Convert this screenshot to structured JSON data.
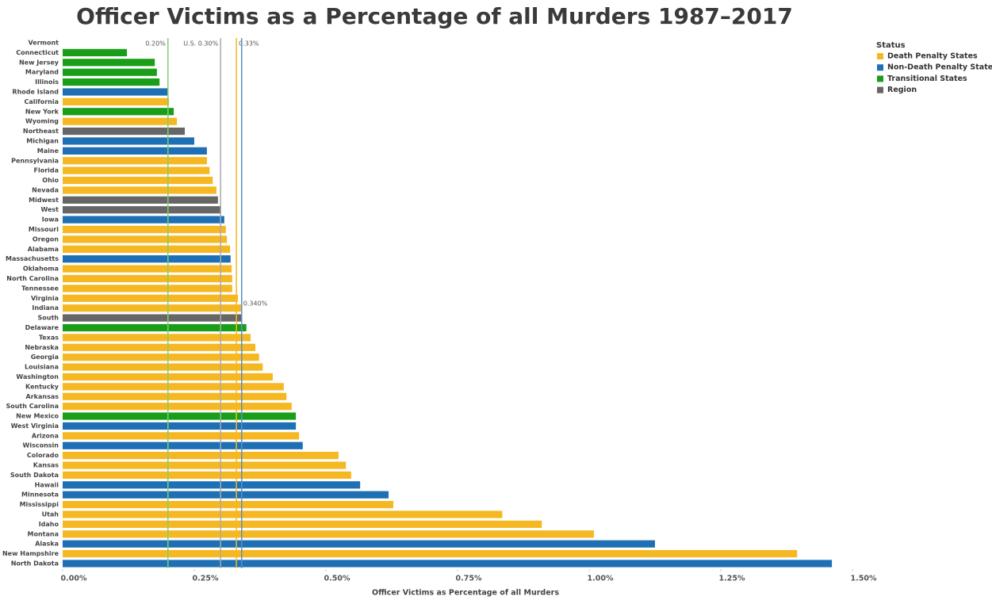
{
  "chart_data": {
    "type": "bar",
    "orientation": "horizontal",
    "title": "Officer Victims as a Percentage of all Murders 1987–2017",
    "x_label": "Officer Victims as Percentage of all Murders",
    "categories": [
      "Vermont",
      "Connecticut",
      "New Jersey",
      "Maryland",
      "Illinois",
      "Rhode Island",
      "California",
      "New York",
      "Wyoming",
      "Northeast",
      "Michigan",
      "Maine",
      "Pennsylvania",
      "Florida",
      "Ohio",
      "Nevada",
      "Midwest",
      "West",
      "Iowa",
      "Missouri",
      "Oregon",
      "Alabama",
      "Massachusetts",
      "Oklahoma",
      "North Carolina",
      "Tennessee",
      "Virginia",
      "Indiana",
      "South",
      "Delaware",
      "Texas",
      "Nebraska",
      "Georgia",
      "Louisiana",
      "Washington",
      "Kentucky",
      "Arkansas",
      "South Carolina",
      "New Mexico",
      "West Virginia",
      "Arizona",
      "Wisconsin",
      "Colorado",
      "Kansas",
      "South Dakota",
      "Hawaii",
      "Minnesota",
      "Mississippi",
      "Utah",
      "Idaho",
      "Montana",
      "Alaska",
      "New Hampshire",
      "North Dakota"
    ],
    "values": [
      0,
      0.122,
      0.175,
      0.179,
      0.184,
      0.199,
      0.202,
      0.211,
      0.217,
      0.232,
      0.25,
      0.274,
      0.274,
      0.279,
      0.285,
      0.292,
      0.295,
      0.301,
      0.307,
      0.31,
      0.312,
      0.318,
      0.319,
      0.321,
      0.322,
      0.322,
      0.333,
      0.339,
      0.34,
      0.349,
      0.357,
      0.366,
      0.373,
      0.38,
      0.399,
      0.42,
      0.425,
      0.435,
      0.443,
      0.443,
      0.449,
      0.456,
      0.524,
      0.538,
      0.548,
      0.565,
      0.619,
      0.628,
      0.835,
      0.91,
      1.009,
      1.125,
      1.395,
      1.461
    ],
    "status": [
      "Non-Death Penalty States",
      "Transitional States",
      "Transitional States",
      "Transitional States",
      "Transitional States",
      "Non-Death Penalty States",
      "Death Penalty States",
      "Transitional States",
      "Death Penalty States",
      "Region",
      "Non-Death Penalty States",
      "Non-Death Penalty States",
      "Death Penalty States",
      "Death Penalty States",
      "Death Penalty States",
      "Death Penalty States",
      "Region",
      "Region",
      "Non-Death Penalty States",
      "Death Penalty States",
      "Death Penalty States",
      "Death Penalty States",
      "Non-Death Penalty States",
      "Death Penalty States",
      "Death Penalty States",
      "Death Penalty States",
      "Death Penalty States",
      "Death Penalty States",
      "Region",
      "Transitional States",
      "Death Penalty States",
      "Death Penalty States",
      "Death Penalty States",
      "Death Penalty States",
      "Death Penalty States",
      "Death Penalty States",
      "Death Penalty States",
      "Death Penalty States",
      "Transitional States",
      "Non-Death Penalty States",
      "Death Penalty States",
      "Non-Death Penalty States",
      "Death Penalty States",
      "Death Penalty States",
      "Death Penalty States",
      "Non-Death Penalty States",
      "Non-Death Penalty States",
      "Death Penalty States",
      "Death Penalty States",
      "Death Penalty States",
      "Death Penalty States",
      "Non-Death Penalty States",
      "Death Penalty States",
      "Non-Death Penalty States"
    ],
    "legend": {
      "title": "Status",
      "items": [
        {
          "name": "Death Penalty States",
          "color": "#f5b822"
        },
        {
          "name": "Non-Death Penalty States",
          "color": "#1f6fb5"
        },
        {
          "name": "Transitional States",
          "color": "#1a9e1a"
        },
        {
          "name": "Region",
          "color": "#666666"
        }
      ]
    },
    "reference_lines": [
      {
        "value": 0.2,
        "label": "0.20%",
        "color": "#7fcf6f"
      },
      {
        "value": 0.3,
        "label": "U.S. 0.30%",
        "color": "#aaaaaa"
      },
      {
        "value": 0.33,
        "label": "0.33%",
        "color": "#f5b822"
      },
      {
        "value": 0.34,
        "label": "0.340%",
        "color": "#5b8fc7"
      }
    ],
    "xlim": [
      0,
      1.5
    ],
    "xticks": [
      {
        "value": 0,
        "label": "0.00%"
      },
      {
        "value": 0.25,
        "label": "0.25%"
      },
      {
        "value": 0.5,
        "label": "0.50%"
      },
      {
        "value": 0.75,
        "label": "0.75%"
      },
      {
        "value": 1,
        "label": "1.00%"
      },
      {
        "value": 1.25,
        "label": "1.25%"
      },
      {
        "value": 1.5,
        "label": "1.50%"
      }
    ]
  }
}
